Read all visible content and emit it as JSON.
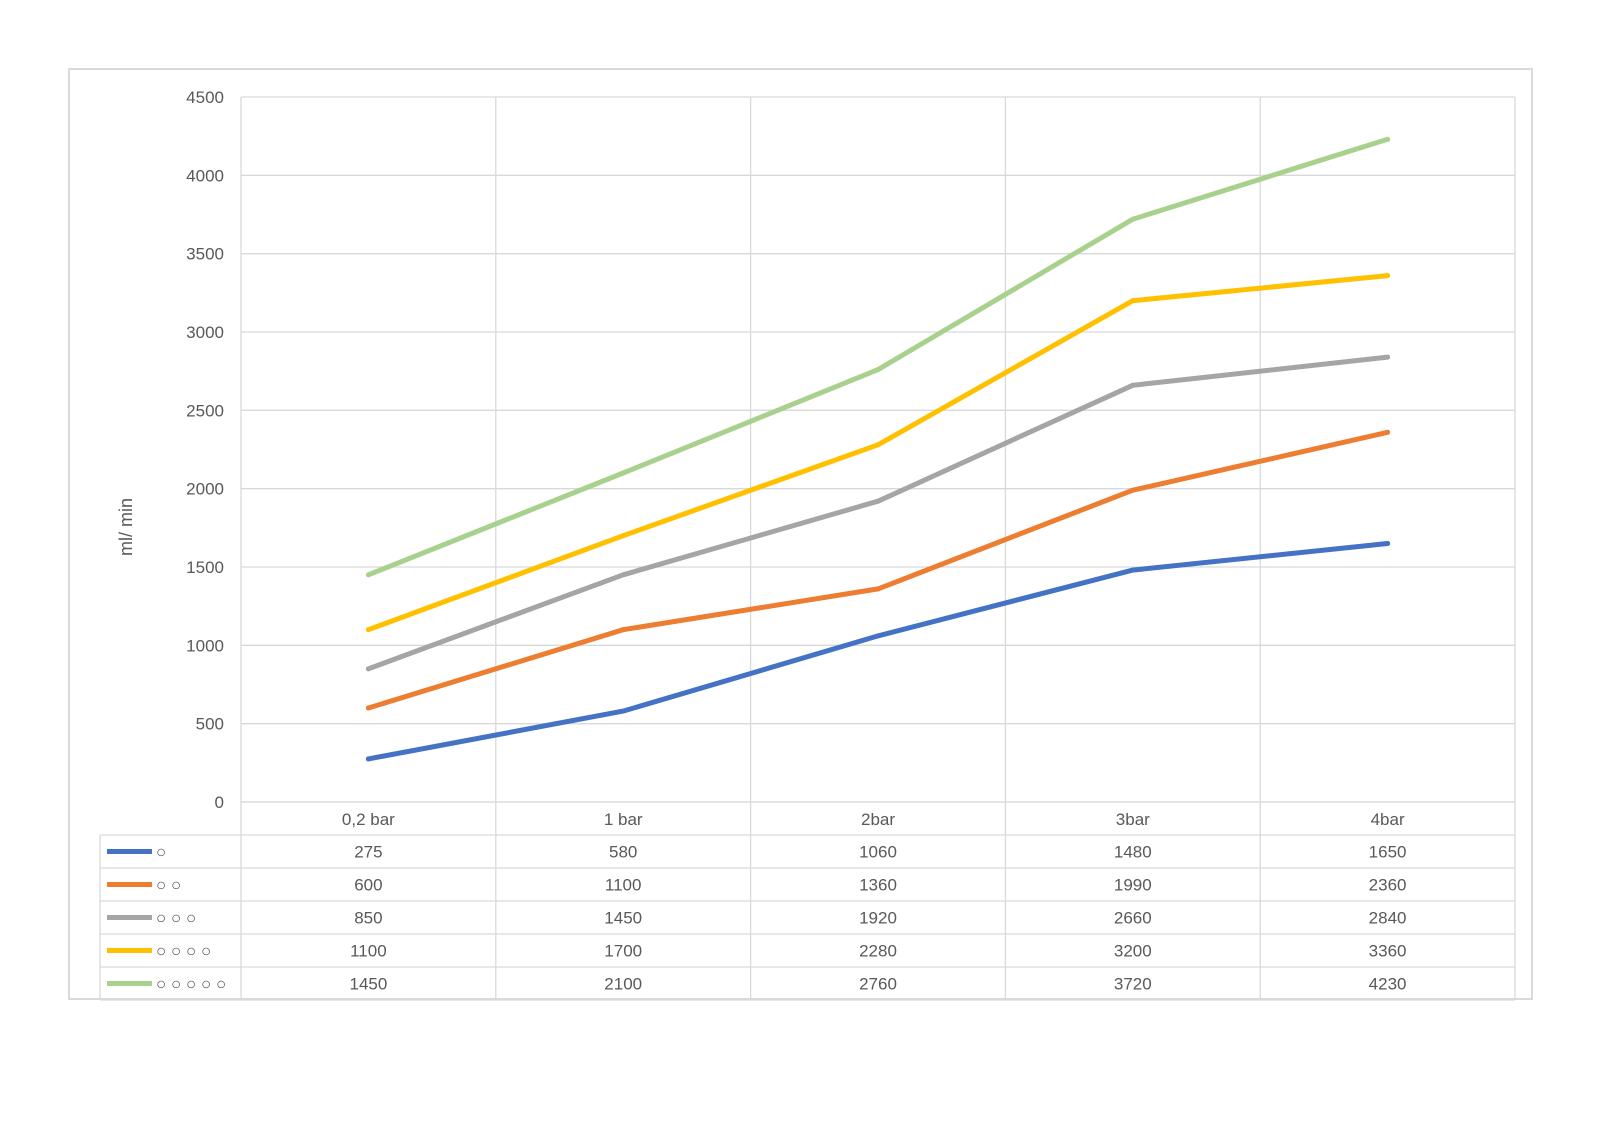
{
  "chart_data": {
    "type": "line",
    "title": "",
    "xlabel": "",
    "ylabel": "ml/ min",
    "ylim": [
      0,
      4500
    ],
    "yticks": [
      0,
      500,
      1000,
      1500,
      2000,
      2500,
      3000,
      3500,
      4000,
      4500
    ],
    "grid": true,
    "legend": "data-table",
    "categories": [
      "0,2 bar",
      "1 bar",
      "2bar",
      "3bar",
      "4bar"
    ],
    "series": [
      {
        "name": "○",
        "color": "#4472c4",
        "values": [
          275,
          580,
          1060,
          1480,
          1650
        ]
      },
      {
        "name": "○ ○",
        "color": "#ed7d31",
        "values": [
          600,
          1100,
          1360,
          1990,
          2360
        ]
      },
      {
        "name": "○ ○ ○",
        "color": "#a5a5a5",
        "values": [
          850,
          1450,
          1920,
          2660,
          2840
        ]
      },
      {
        "name": "○ ○ ○ ○",
        "color": "#ffc000",
        "values": [
          1100,
          1700,
          2280,
          3200,
          3360
        ]
      },
      {
        "name": "○ ○ ○ ○ ○",
        "color": "#a9d18e",
        "values": [
          1450,
          2100,
          2760,
          3720,
          4230
        ]
      }
    ]
  }
}
